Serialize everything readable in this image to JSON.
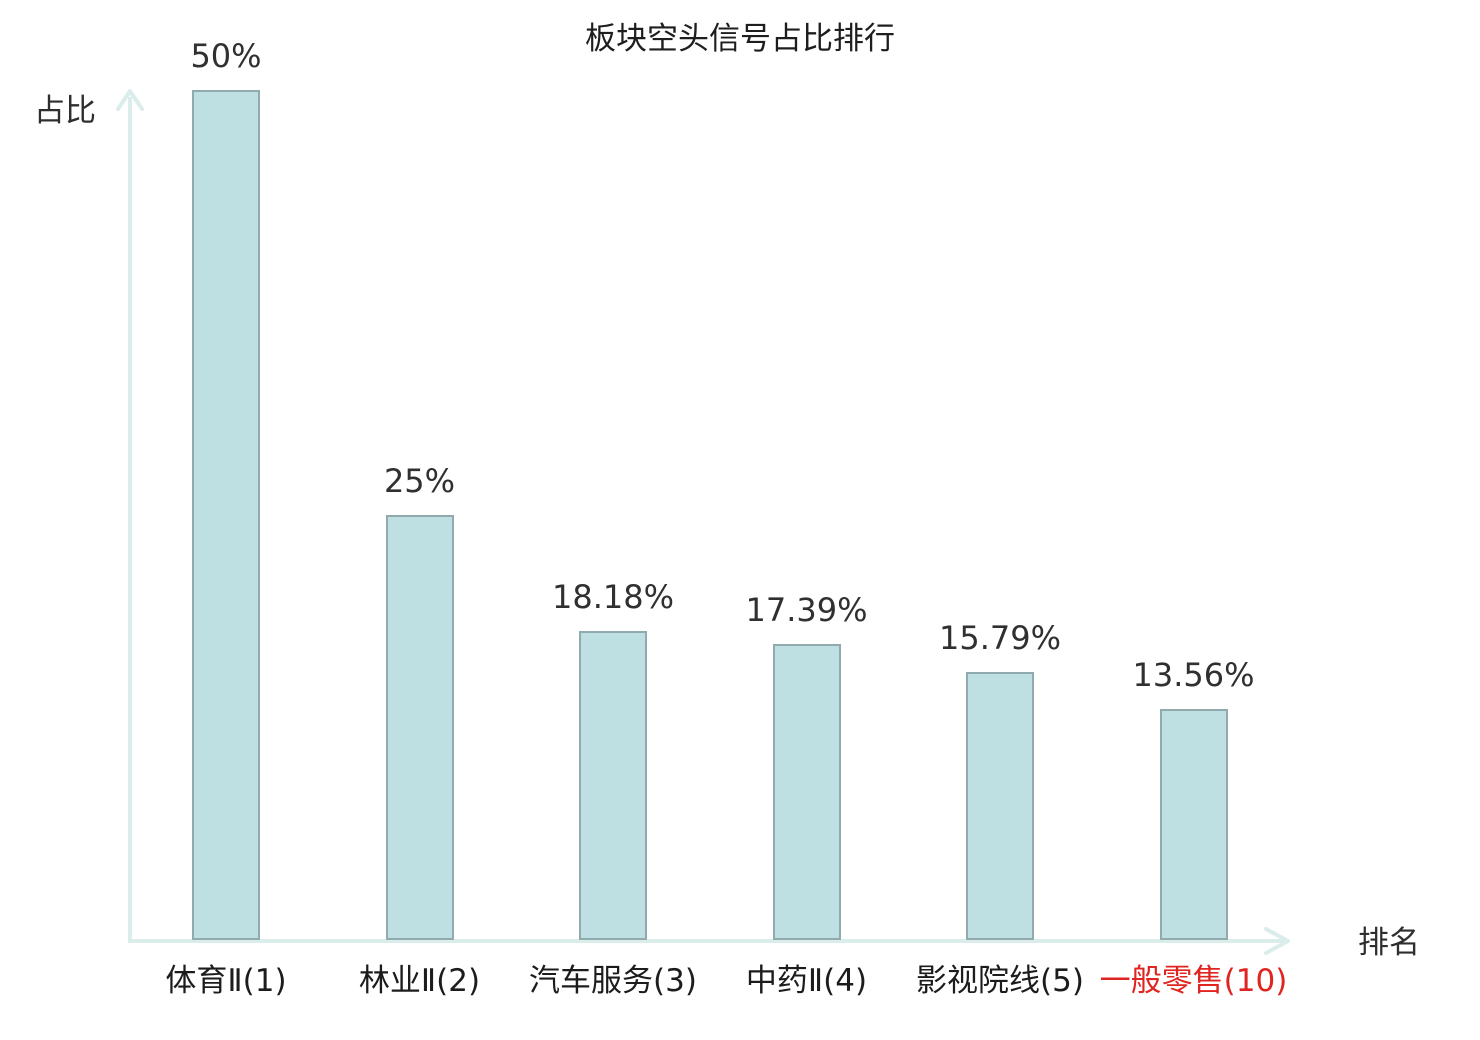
{
  "chart_data": {
    "type": "bar",
    "title": "板块空头信号占比排行",
    "ylabel": "占比",
    "xlabel": "排名",
    "categories": [
      "体育Ⅱ(1)",
      "林业Ⅱ(2)",
      "汽车服务(3)",
      "中药Ⅱ(4)",
      "影视院线(5)",
      "一般零售(10)"
    ],
    "values": [
      50,
      25,
      18.18,
      17.39,
      15.79,
      13.56
    ],
    "value_labels": [
      "50%",
      "25%",
      "18.18%",
      "17.39%",
      "15.79%",
      "13.56%"
    ],
    "highlighted_category_index": 5,
    "highlighted_category": "一般零售(10)",
    "ylim": [
      0,
      50
    ],
    "grid": false,
    "legend": false,
    "y_ticks": [],
    "colors": {
      "bar_fill": "#bee0e3",
      "bar_border": "#90aaad",
      "axis": "#daedeb",
      "text": "#2e2e2e",
      "highlight": "#e02420",
      "background": "#ffffff"
    }
  }
}
